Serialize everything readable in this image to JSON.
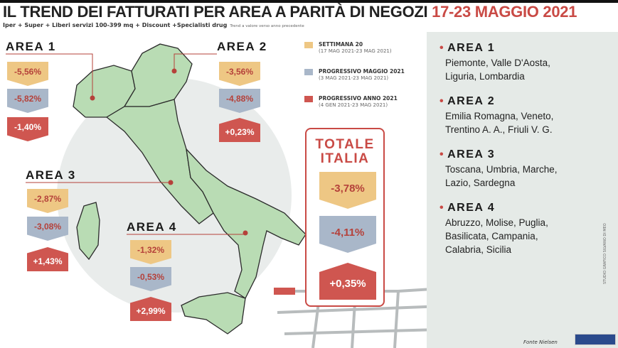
{
  "header": {
    "title": "IL TREND DEI FATTURATI PER AREA A PARITÀ DI NEGOZI",
    "date": "17-23 MAGGIO 2021",
    "subtitle": "Iper + Super + Liberi servizi 100-399 mq + Discount +Specialisti drug",
    "note": "Trend a valore verso anno precedente"
  },
  "legend": [
    {
      "label": "SETTIMANA 20",
      "range": "(17 MAG 2021-23 MAG 2021)",
      "color": "#eec784"
    },
    {
      "label": "PROGRESSIVO MAGGIO 2021",
      "range": "(3 MAG 2021-23 MAG 2021)",
      "color": "#a9b7c9"
    },
    {
      "label": "PROGRESSIVO ANNO 2021",
      "range": "(4 GEN 2021-23 MAG 2021)",
      "color": "#cf5650"
    }
  ],
  "areas": [
    {
      "label": "AREA 1",
      "settimana": "-5,56%",
      "maggio": "-5,82%",
      "anno": "-1,40%",
      "regions": [
        "Piemonte, Valle D'Aosta,",
        "Liguria, Lombardia"
      ]
    },
    {
      "label": "AREA 2",
      "settimana": "-3,56%",
      "maggio": "-4,88%",
      "anno": "+0,23%",
      "regions": [
        "Emilia Romagna, Veneto,",
        "Trentino A. A., Friuli V. G."
      ]
    },
    {
      "label": "AREA 3",
      "settimana": "-2,87%",
      "maggio": "-3,08%",
      "anno": "+1,43%",
      "regions": [
        "Toscana, Umbria, Marche,",
        "Lazio, Sardegna"
      ]
    },
    {
      "label": "AREA 4",
      "settimana": "-1,32%",
      "maggio": "-0,53%",
      "anno": "+2,99%",
      "regions": [
        "Abruzzo, Molise, Puglia,",
        "Basilicata, Campania,",
        "Calabria, Sicilia"
      ]
    }
  ],
  "totale": {
    "title1": "TOTALE",
    "title2": "ITALIA",
    "settimana": "-3,78%",
    "maggio": "-4,11%",
    "anno": "+0,35%"
  },
  "footer": {
    "source": "Fonte Nielsen",
    "credit": "STUDIO GRAFICO SILVANO DI MEO"
  }
}
